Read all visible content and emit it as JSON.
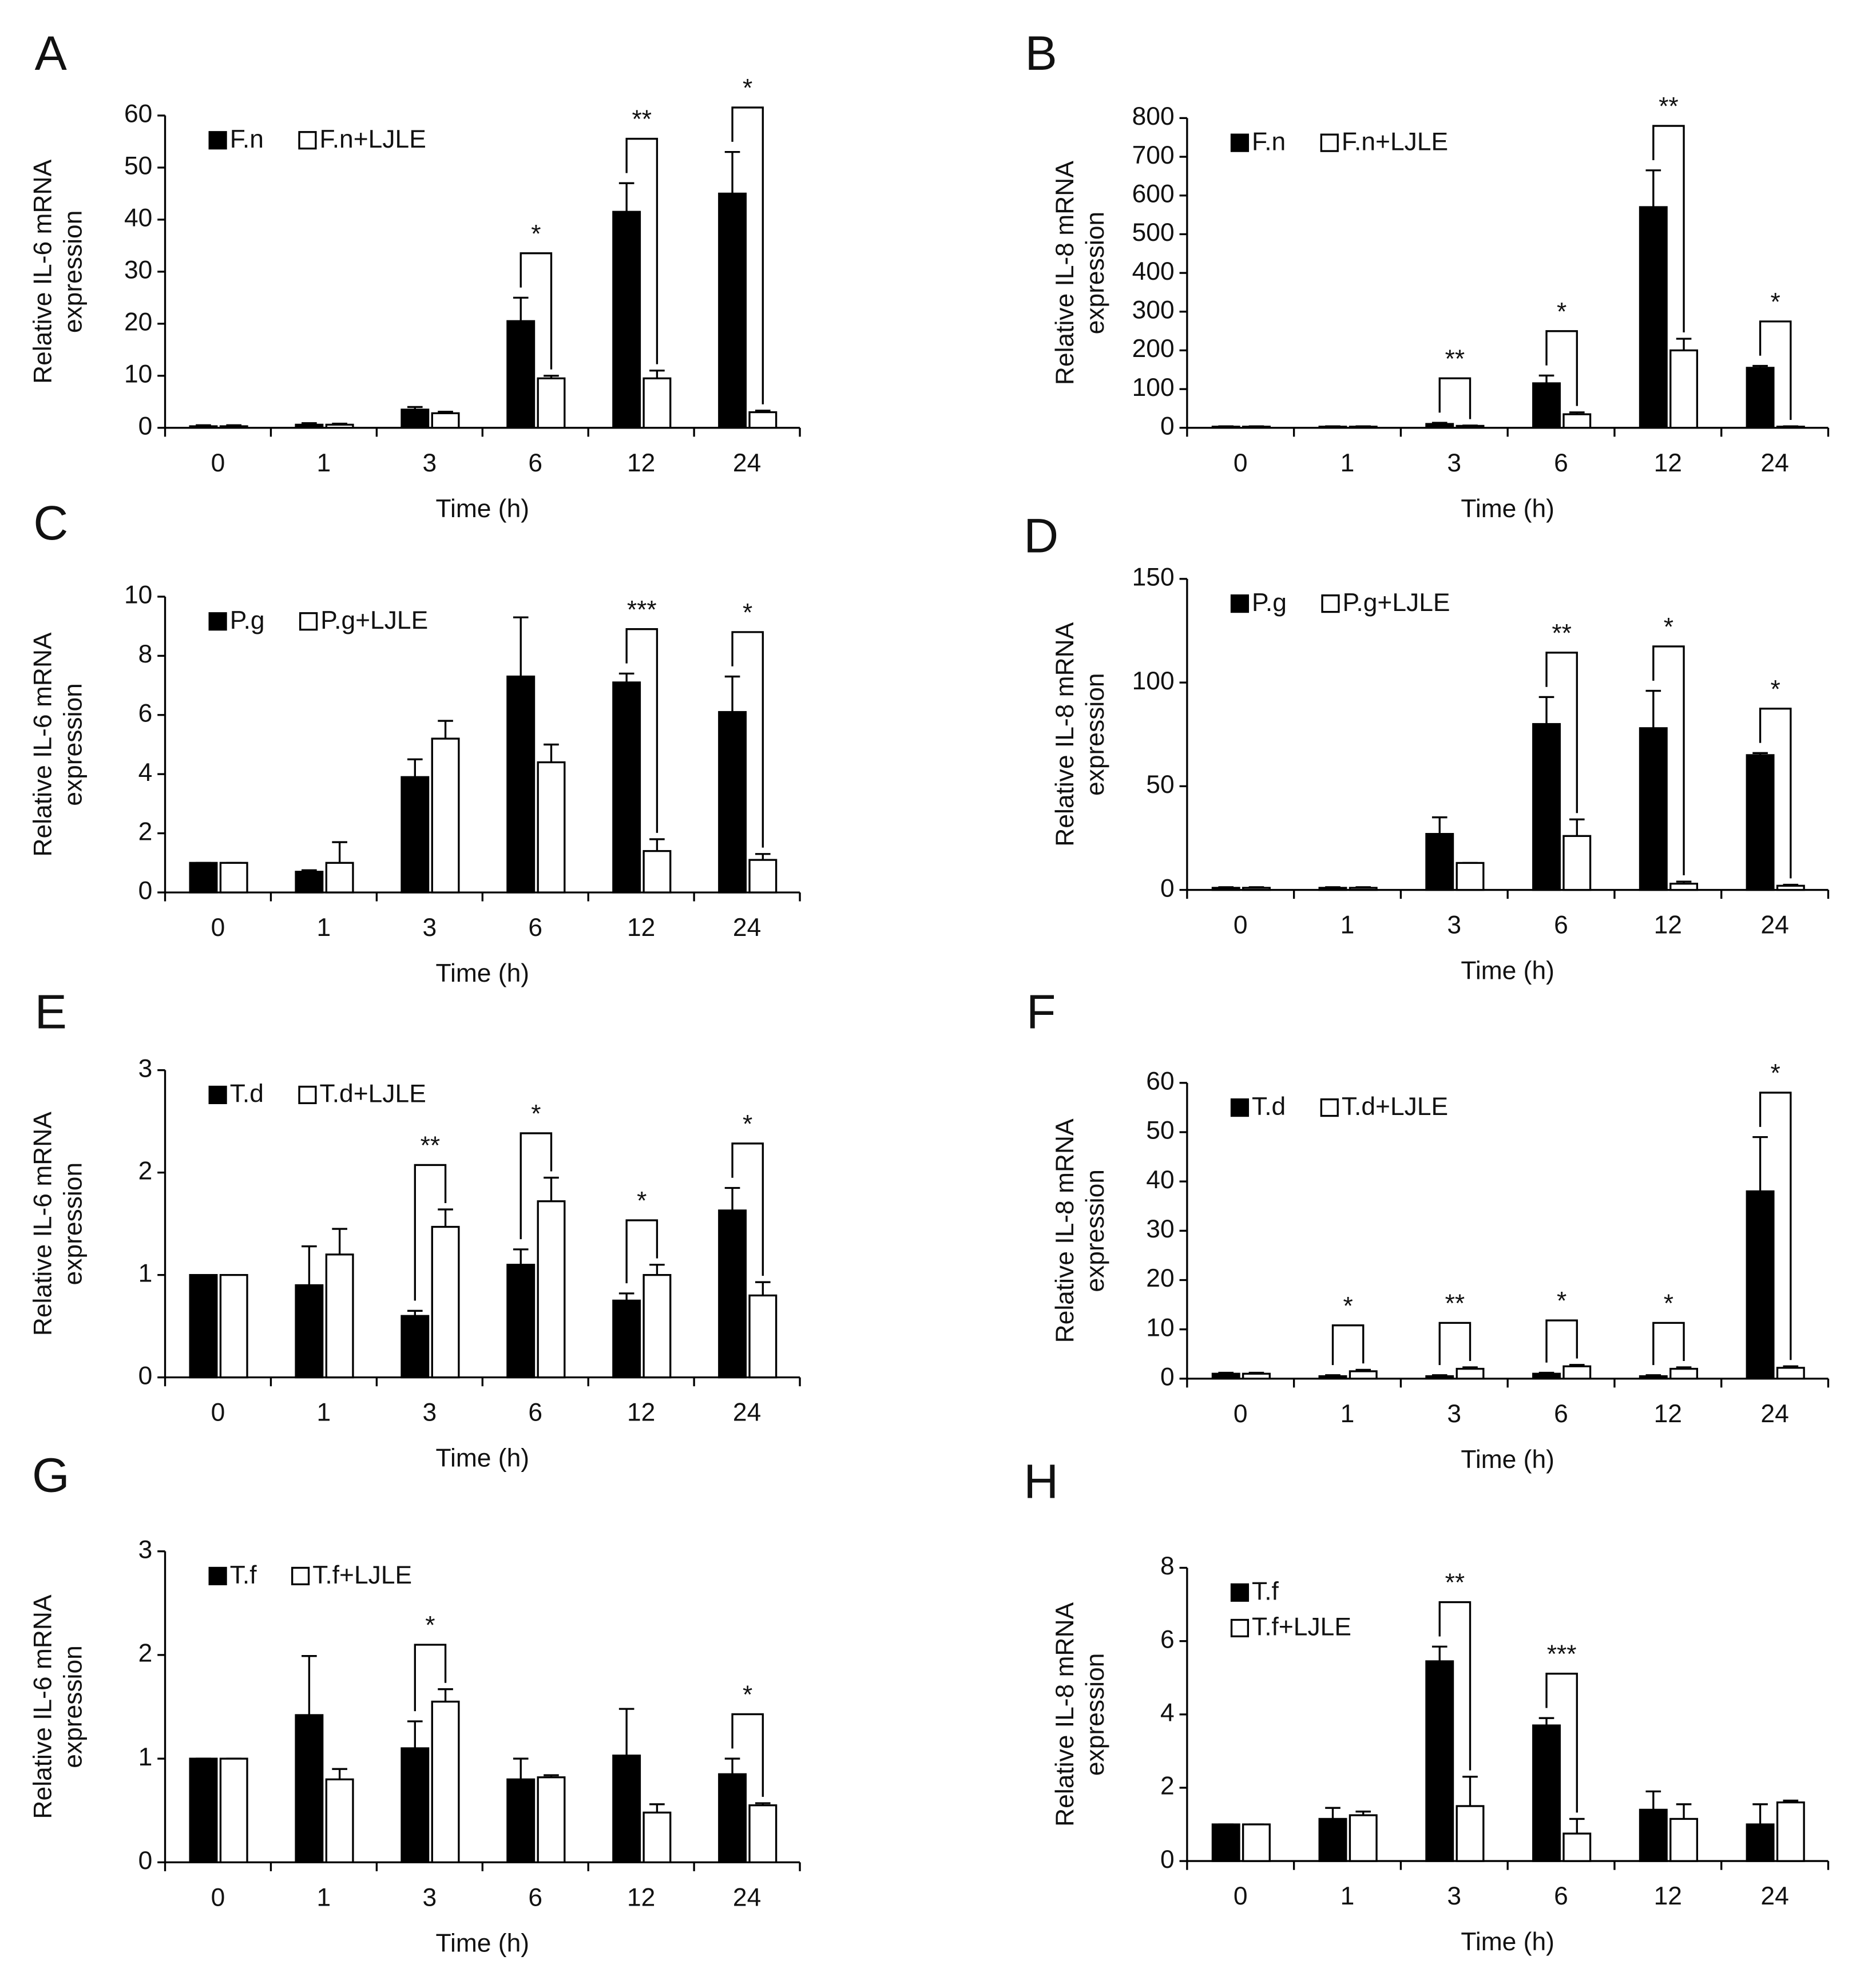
{
  "chart_data": [
    {
      "type": "bar",
      "panel": "A",
      "y_label": [
        "Relative IL-6 mRNA",
        "expression"
      ],
      "x_label": "Time  (h)",
      "categories": [
        "0",
        "1",
        "3",
        "6",
        "12",
        "24"
      ],
      "series": [
        {
          "name": "F.n",
          "color": "#000000",
          "values": [
            0.3,
            0.6,
            3.5,
            20.5,
            41.5,
            45
          ],
          "errors": [
            0.2,
            0.3,
            0.5,
            4.5,
            5.5,
            8
          ]
        },
        {
          "name": "F.n+LJLE",
          "color": "#ffffff",
          "values": [
            0.3,
            0.6,
            2.8,
            9.5,
            9.5,
            3
          ],
          "errors": [
            0.2,
            0.2,
            0.3,
            0.5,
            1.5,
            0.3
          ]
        }
      ],
      "ylim": [
        0,
        60
      ],
      "yticks": [
        0,
        10,
        20,
        30,
        40,
        50,
        60
      ],
      "significance": [
        {
          "category": "6",
          "label": "*"
        },
        {
          "category": "12",
          "label": "**"
        },
        {
          "category": "24",
          "label": "*"
        }
      ]
    },
    {
      "type": "bar",
      "panel": "B",
      "y_label": [
        "Relative IL-8 mRNA",
        "expression"
      ],
      "x_label": "Time  (h)",
      "categories": [
        "0",
        "1",
        "3",
        "6",
        "12",
        "24"
      ],
      "series": [
        {
          "name": "F.n",
          "color": "#000000",
          "values": [
            3,
            3,
            10,
            115,
            570,
            155
          ],
          "errors": [
            1,
            1,
            3,
            20,
            95,
            5
          ]
        },
        {
          "name": "F.n+LJLE",
          "color": "#ffffff",
          "values": [
            3,
            3,
            5,
            35,
            200,
            3
          ],
          "errors": [
            1,
            1,
            1,
            5,
            30,
            1
          ]
        }
      ],
      "ylim": [
        0,
        800
      ],
      "yticks": [
        0,
        100,
        200,
        300,
        400,
        500,
        600,
        700,
        800
      ],
      "significance": [
        {
          "category": "3",
          "label": "**"
        },
        {
          "category": "6",
          "label": "*"
        },
        {
          "category": "12",
          "label": "**"
        },
        {
          "category": "24",
          "label": "*"
        }
      ]
    },
    {
      "type": "bar",
      "panel": "C",
      "y_label": [
        "Relative IL-6 mRNA",
        "expression"
      ],
      "x_label": "Time  (h)",
      "categories": [
        "0",
        "1",
        "3",
        "6",
        "12",
        "24"
      ],
      "series": [
        {
          "name": "P.g",
          "color": "#000000",
          "values": [
            1,
            0.7,
            3.9,
            7.3,
            7.1,
            6.1
          ],
          "errors": [
            0,
            0.05,
            0.6,
            2,
            0.3,
            1.2
          ]
        },
        {
          "name": "P.g+LJLE",
          "color": "#ffffff",
          "values": [
            1,
            1,
            5.2,
            4.4,
            1.4,
            1.1
          ],
          "errors": [
            0,
            0.7,
            0.6,
            0.6,
            0.4,
            0.2
          ]
        }
      ],
      "ylim": [
        0,
        10
      ],
      "yticks": [
        0,
        2,
        4,
        6,
        8,
        10
      ],
      "significance": [
        {
          "category": "12",
          "label": "***"
        },
        {
          "category": "24",
          "label": "*"
        }
      ]
    },
    {
      "type": "bar",
      "panel": "D",
      "y_label": [
        "Relative IL-8 mRNA",
        "expression"
      ],
      "x_label": "Time  (h)",
      "categories": [
        "0",
        "1",
        "3",
        "6",
        "12",
        "24"
      ],
      "series": [
        {
          "name": "P.g",
          "color": "#000000",
          "values": [
            1,
            1,
            27,
            80,
            78,
            65
          ],
          "errors": [
            0.3,
            0.3,
            8,
            13,
            18,
            1
          ]
        },
        {
          "name": "P.g+LJLE",
          "color": "#ffffff",
          "values": [
            1,
            1,
            13,
            26,
            3,
            2
          ],
          "errors": [
            0.3,
            0.3,
            0,
            8,
            1,
            0.5
          ]
        }
      ],
      "ylim": [
        0,
        150
      ],
      "yticks": [
        0,
        50,
        100,
        150
      ],
      "significance": [
        {
          "category": "6",
          "label": "**"
        },
        {
          "category": "12",
          "label": "*"
        },
        {
          "category": "24",
          "label": "*"
        }
      ]
    },
    {
      "type": "bar",
      "panel": "E",
      "y_label": [
        "Relative IL-6 mRNA",
        "expression"
      ],
      "x_label": "Time  (h)",
      "categories": [
        "0",
        "1",
        "3",
        "6",
        "12",
        "24"
      ],
      "series": [
        {
          "name": "T.d",
          "color": "#000000",
          "values": [
            1,
            0.9,
            0.6,
            1.1,
            0.75,
            1.63
          ],
          "errors": [
            0,
            0.38,
            0.05,
            0.15,
            0.07,
            0.22
          ]
        },
        {
          "name": "T.d+LJLE",
          "color": "#ffffff",
          "values": [
            1,
            1.2,
            1.47,
            1.72,
            1,
            0.8
          ],
          "errors": [
            0,
            0.25,
            0.17,
            0.23,
            0.1,
            0.13
          ]
        }
      ],
      "ylim": [
        0,
        3
      ],
      "yticks": [
        0,
        1,
        2,
        3
      ],
      "significance": [
        {
          "category": "3",
          "label": "**"
        },
        {
          "category": "6",
          "label": "*"
        },
        {
          "category": "12",
          "label": "*"
        },
        {
          "category": "24",
          "label": "*"
        }
      ]
    },
    {
      "type": "bar",
      "panel": "F",
      "y_label": [
        "Relative IL-8 mRNA",
        "expression"
      ],
      "x_label": "Time  (h)",
      "categories": [
        "0",
        "1",
        "3",
        "6",
        "12",
        "24"
      ],
      "series": [
        {
          "name": "T.d",
          "color": "#000000",
          "values": [
            1,
            0.5,
            0.5,
            1,
            0.5,
            38
          ],
          "errors": [
            0.2,
            0.2,
            0.2,
            0.2,
            0.2,
            11
          ]
        },
        {
          "name": "T.d+LJLE",
          "color": "#ffffff",
          "values": [
            1,
            1.5,
            2,
            2.5,
            2,
            2.2
          ],
          "errors": [
            0.2,
            0.3,
            0.3,
            0.3,
            0.3,
            0.3
          ]
        }
      ],
      "ylim": [
        0,
        60
      ],
      "yticks": [
        0,
        10,
        20,
        30,
        40,
        50,
        60
      ],
      "significance": [
        {
          "category": "1",
          "label": "*"
        },
        {
          "category": "3",
          "label": "**"
        },
        {
          "category": "6",
          "label": "*"
        },
        {
          "category": "12",
          "label": "*"
        },
        {
          "category": "24",
          "label": "*"
        }
      ]
    },
    {
      "type": "bar",
      "panel": "G",
      "y_label": [
        "Relative IL-6 mRNA",
        "expression"
      ],
      "x_label": "Time  (h)",
      "categories": [
        "0",
        "1",
        "3",
        "6",
        "12",
        "24"
      ],
      "series": [
        {
          "name": "T.f",
          "color": "#000000",
          "values": [
            1,
            1.42,
            1.1,
            0.8,
            1.03,
            0.85
          ],
          "errors": [
            0,
            0.57,
            0.26,
            0.2,
            0.45,
            0.15
          ]
        },
        {
          "name": "T.f+LJLE",
          "color": "#ffffff",
          "values": [
            1,
            0.8,
            1.55,
            0.82,
            0.48,
            0.55
          ],
          "errors": [
            0,
            0.1,
            0.12,
            0.02,
            0.08,
            0.02
          ]
        }
      ],
      "ylim": [
        0,
        3
      ],
      "yticks": [
        0,
        1,
        2,
        3
      ],
      "significance": [
        {
          "category": "3",
          "label": "*"
        },
        {
          "category": "24",
          "label": "*"
        }
      ]
    },
    {
      "type": "bar",
      "panel": "H",
      "y_label": [
        "Relative IL-8 mRNA",
        "expression"
      ],
      "x_label": "Time  (h)",
      "categories": [
        "0",
        "1",
        "3",
        "6",
        "12",
        "24"
      ],
      "series": [
        {
          "name": "T.f",
          "color": "#000000",
          "values": [
            1,
            1.15,
            5.45,
            3.7,
            1.4,
            1
          ],
          "errors": [
            0,
            0.3,
            0.4,
            0.2,
            0.5,
            0.55
          ]
        },
        {
          "name": "T.f+LJLE",
          "color": "#ffffff",
          "values": [
            1,
            1.25,
            1.5,
            0.75,
            1.15,
            1.6
          ],
          "errors": [
            0,
            0.1,
            0.8,
            0.4,
            0.4,
            0.05
          ]
        }
      ],
      "ylim": [
        0,
        8
      ],
      "yticks": [
        0,
        2,
        4,
        6,
        8
      ],
      "legend": "stacked",
      "significance": [
        {
          "category": "3",
          "label": "**"
        },
        {
          "category": "6",
          "label": "***"
        }
      ]
    }
  ]
}
